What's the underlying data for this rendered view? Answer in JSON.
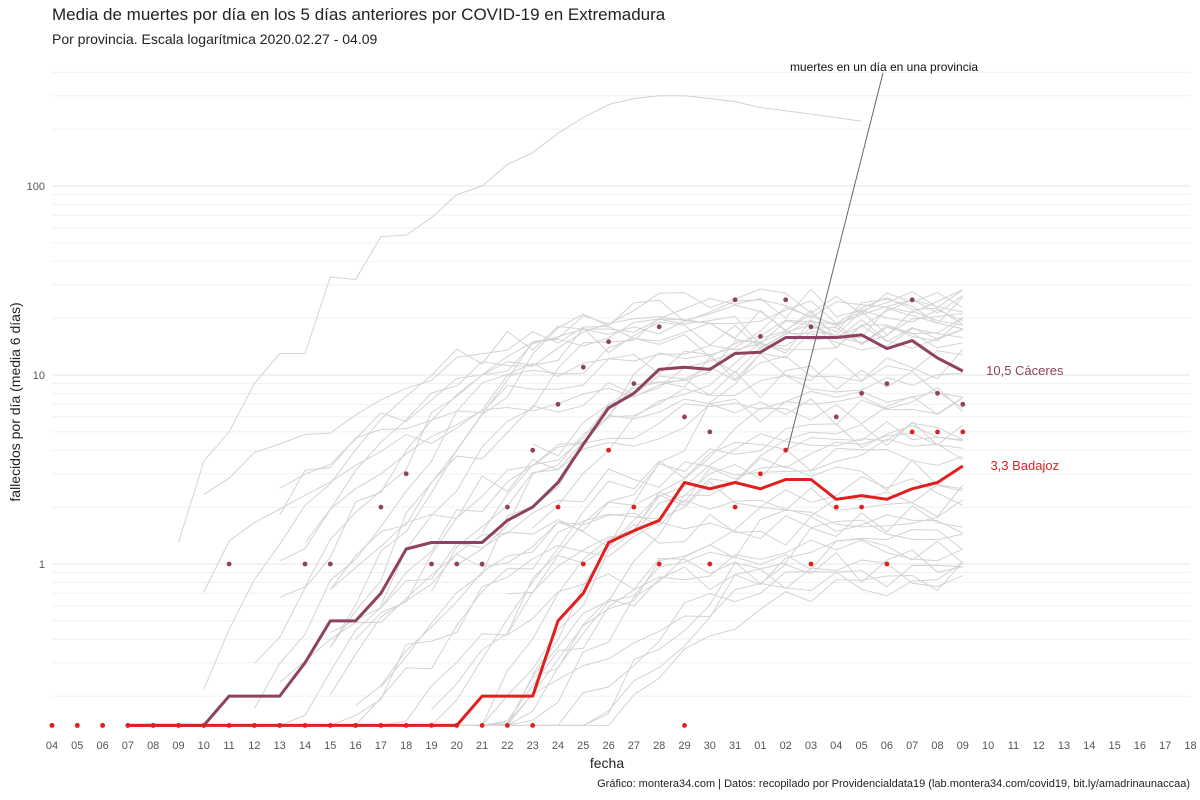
{
  "title": "Media de muertes por día en los 5 días anteriores por COVID-19 en Extremadura",
  "subtitle": "Por provincia. Escala logarítmica  2020.02.27 - 04.09",
  "caption": "Gráfico: montera34.com | Datos: recopilado por Providencialdata19 (lab.montera34.com/covid19, bit.ly/amadrinaunaccaa)",
  "annotation": "muertes en un día en una provincia",
  "chart_data": {
    "type": "line",
    "xlabel": "fecha",
    "ylabel": "fallecidos por día (media 6 días)",
    "y_scale": "log",
    "ylim": [
      0.14,
      420
    ],
    "y_ticks": [
      1,
      10,
      100
    ],
    "y_tick_labels": [
      "1",
      "10",
      "100"
    ],
    "x_tick_labels": [
      "04",
      "05",
      "06",
      "07",
      "08",
      "09",
      "10",
      "11",
      "12",
      "13",
      "14",
      "15",
      "16",
      "17",
      "18",
      "19",
      "20",
      "21",
      "22",
      "23",
      "24",
      "25",
      "26",
      "27",
      "28",
      "29",
      "30",
      "31",
      "01",
      "02",
      "03",
      "04",
      "05",
      "06",
      "07",
      "08",
      "09",
      "10",
      "11",
      "12",
      "13",
      "14",
      "15",
      "16",
      "17",
      "18"
    ],
    "x_dates": [
      "2020-03-04",
      "2020-03-05",
      "2020-03-06",
      "2020-03-07",
      "2020-03-08",
      "2020-03-09",
      "2020-03-10",
      "2020-03-11",
      "2020-03-12",
      "2020-03-13",
      "2020-03-14",
      "2020-03-15",
      "2020-03-16",
      "2020-03-17",
      "2020-03-18",
      "2020-03-19",
      "2020-03-20",
      "2020-03-21",
      "2020-03-22",
      "2020-03-23",
      "2020-03-24",
      "2020-03-25",
      "2020-03-26",
      "2020-03-27",
      "2020-03-28",
      "2020-03-29",
      "2020-03-30",
      "2020-03-31",
      "2020-04-01",
      "2020-04-02",
      "2020-04-03",
      "2020-04-04",
      "2020-04-05",
      "2020-04-06",
      "2020-04-07",
      "2020-04-08",
      "2020-04-09"
    ],
    "grid": true,
    "legend": "none",
    "series": [
      {
        "name": "Cáceres",
        "label": "10,5 Cáceres",
        "color": "#8e4161",
        "values": [
          null,
          null,
          null,
          0.14,
          0.14,
          0.14,
          0.14,
          0.2,
          0.2,
          0.2,
          0.3,
          0.5,
          0.5,
          0.7,
          1.2,
          1.3,
          1.3,
          1.3,
          1.7,
          2.0,
          2.7,
          4.3,
          6.7,
          8.0,
          10.7,
          11.0,
          10.7,
          13.0,
          13.2,
          15.8,
          15.8,
          15.8,
          16.3,
          13.8,
          15.2,
          12.3,
          10.5
        ],
        "daily": [
          0,
          0,
          0,
          0,
          0,
          0,
          0,
          1,
          0,
          0,
          1,
          1,
          0,
          2,
          3,
          1,
          1,
          1,
          2,
          4,
          7,
          11,
          15,
          9,
          18,
          6,
          5,
          25,
          16,
          25,
          18,
          6,
          8,
          9,
          25,
          8,
          7
        ]
      },
      {
        "name": "Badajoz",
        "label": "3,3 Badajoz",
        "color": "#e11f1f",
        "values": [
          null,
          null,
          null,
          0.14,
          0.14,
          0.14,
          0.14,
          0.14,
          0.14,
          0.14,
          0.14,
          0.14,
          0.14,
          0.14,
          0.14,
          0.14,
          0.14,
          0.2,
          0.2,
          0.2,
          0.5,
          0.7,
          1.3,
          1.5,
          1.7,
          2.7,
          2.5,
          2.7,
          2.5,
          2.8,
          2.8,
          2.2,
          2.3,
          2.2,
          2.5,
          2.7,
          3.3
        ],
        "daily": [
          0,
          0,
          0,
          0,
          0,
          0,
          0,
          0,
          0,
          0,
          0,
          0,
          0,
          0,
          0,
          0,
          0,
          0,
          0,
          0,
          2,
          1,
          4,
          2,
          1,
          0,
          1,
          2,
          3,
          4,
          1,
          2,
          2,
          1,
          5,
          5,
          5
        ]
      }
    ],
    "background_series_color": "#d3d3d3"
  }
}
